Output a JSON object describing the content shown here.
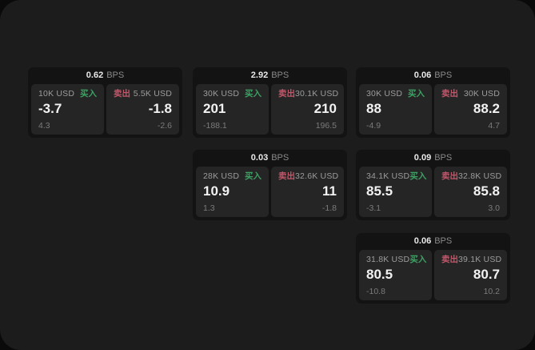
{
  "board": {
    "labels": {
      "buy": "买入",
      "sell": "卖出",
      "bps": "BPS"
    },
    "colors": {
      "buy_green": "#3ca263",
      "sell_red": "#c4566a",
      "surface": "#1c1c1c",
      "card": "#131313",
      "panel": "#252525"
    },
    "cards": [
      {
        "bps": "0.62",
        "buy": {
          "amount": "10K USD",
          "price": "-3.7",
          "change": "4.3"
        },
        "sell": {
          "amount": "5.5K USD",
          "price": "-1.8",
          "change": "-2.6"
        }
      },
      {
        "bps": "2.92",
        "buy": {
          "amount": "30K USD",
          "price": "201",
          "change": "-188.1"
        },
        "sell": {
          "amount": "30.1K USD",
          "price": "210",
          "change": "196.5"
        }
      },
      {
        "bps": "0.06",
        "buy": {
          "amount": "30K USD",
          "price": "88",
          "change": "-4.9"
        },
        "sell": {
          "amount": "30K USD",
          "price": "88.2",
          "change": "4.7"
        }
      },
      {
        "bps": "0.03",
        "buy": {
          "amount": "28K USD",
          "price": "10.9",
          "change": "1.3"
        },
        "sell": {
          "amount": "32.6K USD",
          "price": "11",
          "change": "-1.8"
        }
      },
      {
        "bps": "0.09",
        "buy": {
          "amount": "34.1K USD",
          "price": "85.5",
          "change": "-3.1"
        },
        "sell": {
          "amount": "32.8K USD",
          "price": "85.8",
          "change": "3.0"
        }
      },
      {
        "bps": "0.06",
        "buy": {
          "amount": "31.8K USD",
          "price": "80.5",
          "change": "-10.8"
        },
        "sell": {
          "amount": "39.1K USD",
          "price": "80.7",
          "change": "10.2"
        }
      }
    ]
  }
}
